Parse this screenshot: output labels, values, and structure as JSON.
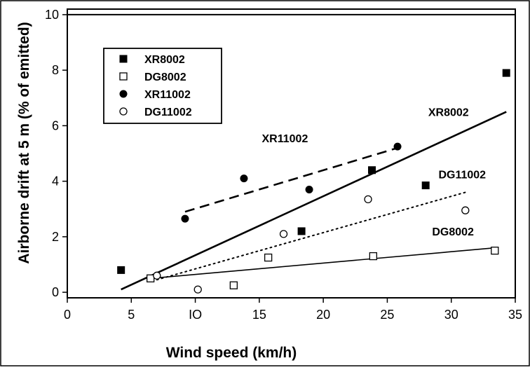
{
  "chart_data": {
    "type": "scatter",
    "title": "",
    "xlabel": "Wind speed (km/h)",
    "ylabel": "Airborne drift at 5 m (% of emitted)",
    "xlim": [
      0,
      35
    ],
    "ylim": [
      -0.2,
      10.2
    ],
    "x_ticks": [
      0,
      5,
      10,
      15,
      20,
      25,
      30,
      35
    ],
    "x_tick_labels": [
      "0",
      "5",
      "IO",
      "15",
      "20",
      "25",
      "30",
      "35"
    ],
    "y_ticks": [
      0,
      2,
      4,
      6,
      8,
      10
    ],
    "y_tick_labels": [
      "0",
      "2",
      "4",
      "6",
      "8",
      "10"
    ],
    "grid": false,
    "legend_position": "top-left",
    "reference_line": {
      "y": 10
    },
    "series": [
      {
        "name": "XR8002",
        "marker": "filled-square",
        "points": [
          [
            4.2,
            0.8
          ],
          [
            18.3,
            2.2
          ],
          [
            23.8,
            4.4
          ],
          [
            28.0,
            3.85
          ],
          [
            34.3,
            7.9
          ]
        ],
        "trend": {
          "style": "solid",
          "width": 2.6,
          "from": [
            4.2,
            0.1
          ],
          "to": [
            34.3,
            6.5
          ]
        },
        "annotation": "XR8002"
      },
      {
        "name": "DG8002",
        "marker": "open-square",
        "points": [
          [
            6.5,
            0.5
          ],
          [
            13.0,
            0.25
          ],
          [
            15.7,
            1.25
          ],
          [
            23.9,
            1.3
          ],
          [
            33.4,
            1.5
          ]
        ],
        "trend": {
          "style": "solid",
          "width": 1.6,
          "from": [
            6.5,
            0.5
          ],
          "to": [
            33.4,
            1.6
          ]
        },
        "annotation": "DG8002"
      },
      {
        "name": "XR11002",
        "marker": "filled-circle",
        "points": [
          [
            9.2,
            2.65
          ],
          [
            13.8,
            4.1
          ],
          [
            18.9,
            3.7
          ],
          [
            25.8,
            5.25
          ]
        ],
        "trend": {
          "style": "dashed",
          "width": 2.6,
          "from": [
            9.2,
            2.9
          ],
          "to": [
            25.8,
            5.2
          ]
        },
        "annotation": "XR11002"
      },
      {
        "name": "DG11002",
        "marker": "open-circle",
        "points": [
          [
            7.0,
            0.6
          ],
          [
            10.2,
            0.1
          ],
          [
            16.9,
            2.1
          ],
          [
            23.5,
            3.35
          ],
          [
            31.1,
            2.95
          ]
        ],
        "trend": {
          "style": "dotted",
          "width": 2,
          "from": [
            7.0,
            0.45
          ],
          "to": [
            31.1,
            3.6
          ]
        },
        "annotation": "DG11002"
      }
    ],
    "annotations": [
      {
        "text": "XR8002",
        "x": 28.2,
        "y": 6.35
      },
      {
        "text": "XR11002",
        "x": 15.2,
        "y": 5.4
      },
      {
        "text": "DG11002",
        "x": 29.0,
        "y": 4.1
      },
      {
        "text": "DG8002",
        "x": 28.5,
        "y": 2.05
      }
    ]
  }
}
